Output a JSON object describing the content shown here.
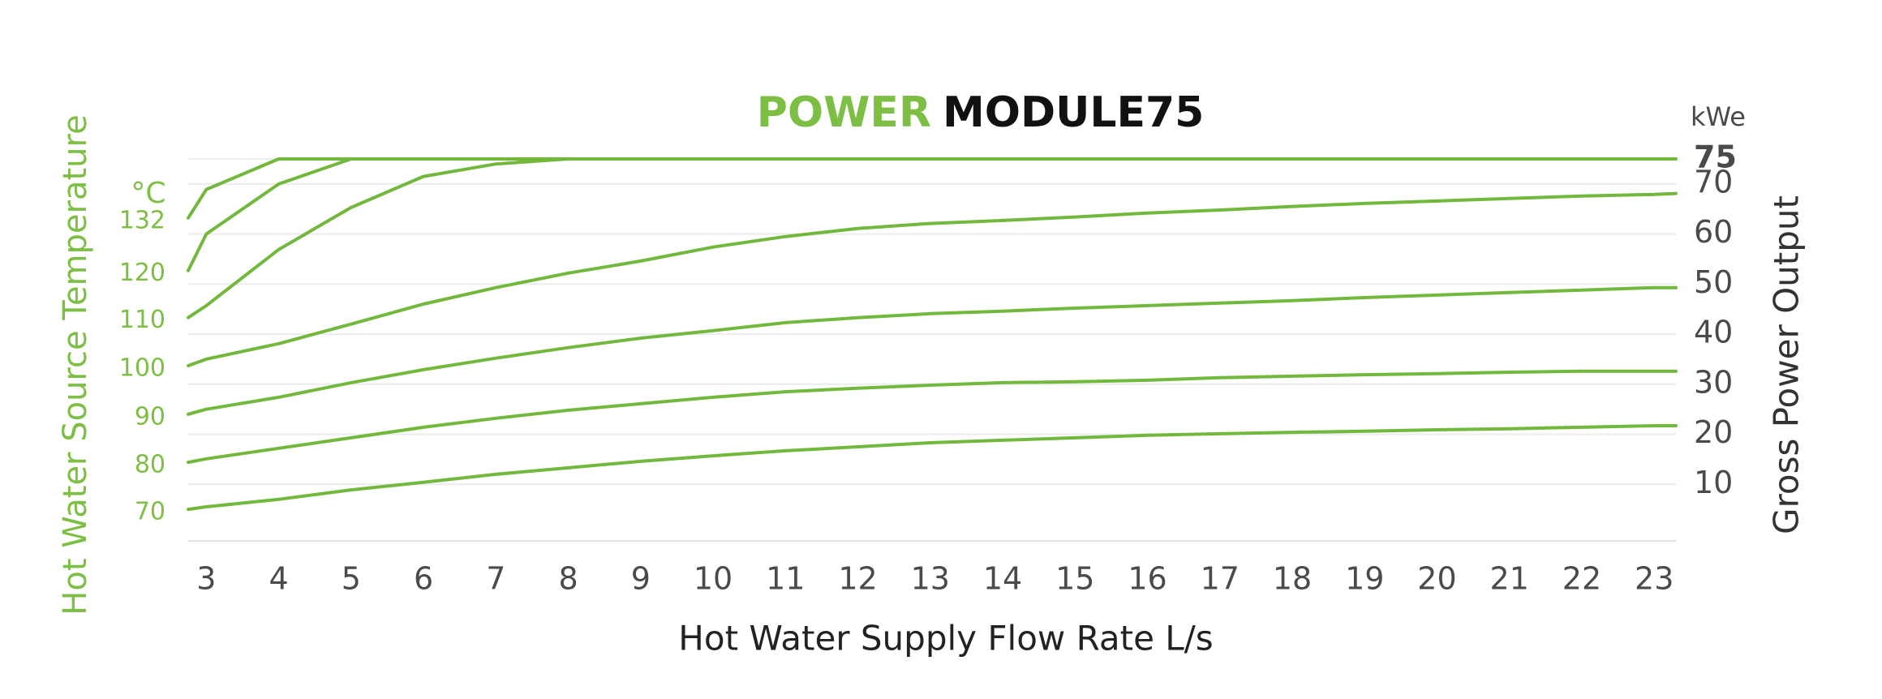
{
  "chart_data": {
    "type": "line",
    "title": {
      "highlight": "POWER",
      "main": "MODULE75"
    },
    "x_label": "Hot Water Supply Flow Rate L/s",
    "y_label": "Gross Power Output",
    "y_unit": "kWe",
    "series_axis_label": "Hot Water Source Temperature",
    "series_unit": "°C",
    "y_axis_side": "right",
    "grid": true,
    "color": "#72b83d",
    "x": [
      2.75,
      3,
      4,
      5,
      6,
      7,
      8,
      9,
      10,
      11,
      12,
      13,
      14,
      15,
      16,
      17,
      18,
      19,
      20,
      21,
      22,
      23,
      23.3
    ],
    "xlim": [
      2.75,
      23.3
    ],
    "xticks": [
      3,
      4,
      5,
      6,
      7,
      8,
      9,
      10,
      11,
      12,
      13,
      14,
      15,
      16,
      17,
      18,
      19,
      20,
      21,
      22,
      23
    ],
    "ylim": [
      0,
      75
    ],
    "yticks": [
      10,
      20,
      30,
      40,
      50,
      60,
      70,
      75
    ],
    "series": [
      {
        "name": "132",
        "values": [
          63.2,
          68.9,
          75,
          75,
          75,
          75,
          75,
          75,
          75,
          75,
          75,
          75,
          75,
          75,
          75,
          75,
          75,
          75,
          75,
          75,
          75,
          75,
          75
        ]
      },
      {
        "name": "120",
        "values": [
          52.7,
          60,
          70,
          75,
          null,
          null,
          null,
          null,
          null,
          null,
          null,
          null,
          null,
          null,
          null,
          null,
          null,
          null,
          null,
          null,
          null,
          null,
          null
        ]
      },
      {
        "name": "110",
        "values": [
          43.3,
          45.7,
          56.9,
          65.3,
          71.5,
          74,
          75,
          null,
          null,
          null,
          null,
          null,
          null,
          null,
          null,
          null,
          null,
          null,
          null,
          null,
          null,
          null,
          null
        ]
      },
      {
        "name": "100",
        "values": [
          33.7,
          35,
          38.1,
          42,
          46,
          49.3,
          52.2,
          54.6,
          57.4,
          59.5,
          61.1,
          62.1,
          62.7,
          63.4,
          64.2,
          64.8,
          65.5,
          66.1,
          66.6,
          67.1,
          67.6,
          67.9,
          68.1
        ]
      },
      {
        "name": "90",
        "values": [
          24,
          25,
          27.4,
          30.3,
          32.9,
          35.2,
          37.3,
          39.2,
          40.7,
          42.3,
          43.3,
          44.1,
          44.6,
          45.2,
          45.7,
          46.2,
          46.7,
          47.3,
          47.8,
          48.3,
          48.8,
          49.3,
          49.3
        ]
      },
      {
        "name": "80",
        "values": [
          14.4,
          15.1,
          17.2,
          19.3,
          21.4,
          23.2,
          24.8,
          26.1,
          27.4,
          28.5,
          29.2,
          29.8,
          30.3,
          30.5,
          30.8,
          31.3,
          31.6,
          31.9,
          32.1,
          32.4,
          32.6,
          32.6,
          32.6
        ]
      },
      {
        "name": "70",
        "values": [
          5,
          5.5,
          7,
          8.9,
          10.4,
          12,
          13.3,
          14.6,
          15.7,
          16.7,
          17.5,
          18.3,
          18.8,
          19.3,
          19.8,
          20.1,
          20.4,
          20.6,
          20.9,
          21.1,
          21.4,
          21.7,
          21.7
        ]
      }
    ]
  }
}
